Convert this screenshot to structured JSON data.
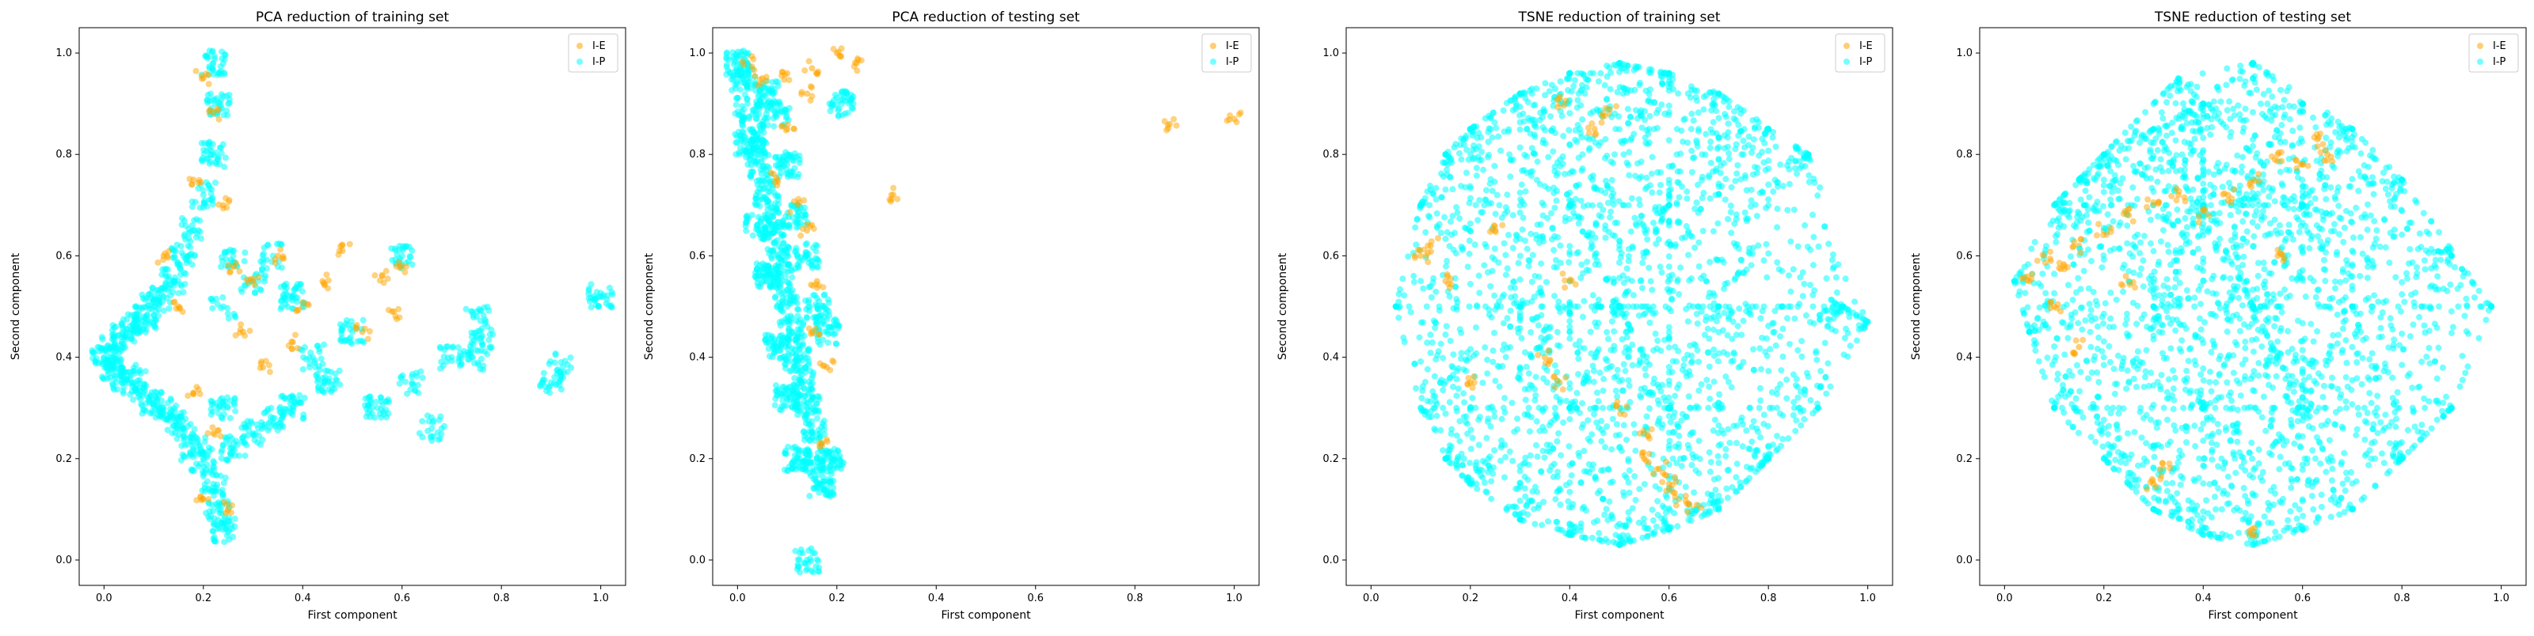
{
  "figure": {
    "colors": {
      "I-E": "#ffa500",
      "I-P": "#00ffff"
    }
  },
  "chart_data": [
    {
      "type": "scatter",
      "title": "PCA reduction of training set",
      "xlabel": "First component",
      "ylabel": "Second component",
      "xlim": [
        -0.05,
        1.05
      ],
      "ylim": [
        -0.05,
        1.05
      ],
      "xticks": [
        "0.0",
        "0.2",
        "0.4",
        "0.6",
        "0.8",
        "1.0"
      ],
      "yticks": [
        "0.0",
        "0.2",
        "0.4",
        "0.6",
        "0.8",
        "1.0"
      ],
      "legend": {
        "position": "top-right",
        "entries": [
          "I-E",
          "I-P"
        ]
      },
      "grid": false,
      "series": [
        {
          "name": "I-P",
          "color": "#00ffff",
          "points": [
            [
              0.0,
              0.4
            ],
            [
              0.02,
              0.38
            ],
            [
              0.02,
              0.42
            ],
            [
              0.04,
              0.36
            ],
            [
              0.04,
              0.44
            ],
            [
              0.06,
              0.35
            ],
            [
              0.06,
              0.46
            ],
            [
              0.08,
              0.33
            ],
            [
              0.08,
              0.48
            ],
            [
              0.1,
              0.31
            ],
            [
              0.1,
              0.5
            ],
            [
              0.12,
              0.3
            ],
            [
              0.12,
              0.52
            ],
            [
              0.14,
              0.28
            ],
            [
              0.14,
              0.55
            ],
            [
              0.16,
              0.26
            ],
            [
              0.16,
              0.6
            ],
            [
              0.18,
              0.22
            ],
            [
              0.18,
              0.65
            ],
            [
              0.2,
              0.2
            ],
            [
              0.2,
              0.72
            ],
            [
              0.22,
              0.15
            ],
            [
              0.22,
              0.8
            ],
            [
              0.23,
              0.1
            ],
            [
              0.23,
              0.9
            ],
            [
              0.24,
              0.06
            ],
            [
              0.22,
              0.98
            ],
            [
              0.24,
              0.3
            ],
            [
              0.24,
              0.5
            ],
            [
              0.26,
              0.22
            ],
            [
              0.26,
              0.6
            ],
            [
              0.3,
              0.25
            ],
            [
              0.3,
              0.55
            ],
            [
              0.34,
              0.28
            ],
            [
              0.34,
              0.6
            ],
            [
              0.38,
              0.3
            ],
            [
              0.38,
              0.52
            ],
            [
              0.42,
              0.4
            ],
            [
              0.45,
              0.35
            ],
            [
              0.5,
              0.45
            ],
            [
              0.55,
              0.3
            ],
            [
              0.6,
              0.6
            ],
            [
              0.62,
              0.35
            ],
            [
              0.66,
              0.26
            ],
            [
              0.7,
              0.4
            ],
            [
              0.75,
              0.48
            ],
            [
              0.76,
              0.43
            ],
            [
              0.74,
              0.4
            ],
            [
              0.9,
              0.35
            ],
            [
              0.92,
              0.39
            ],
            [
              1.0,
              0.52
            ]
          ]
        },
        {
          "name": "I-E",
          "color": "#ffa500",
          "points": [
            [
              0.2,
              0.95
            ],
            [
              0.22,
              0.88
            ],
            [
              0.18,
              0.75
            ],
            [
              0.24,
              0.7
            ],
            [
              0.26,
              0.58
            ],
            [
              0.3,
              0.55
            ],
            [
              0.35,
              0.6
            ],
            [
              0.4,
              0.5
            ],
            [
              0.48,
              0.61
            ],
            [
              0.52,
              0.45
            ],
            [
              0.56,
              0.56
            ],
            [
              0.15,
              0.5
            ],
            [
              0.18,
              0.33
            ],
            [
              0.22,
              0.25
            ],
            [
              0.25,
              0.1
            ],
            [
              0.2,
              0.12
            ],
            [
              0.12,
              0.6
            ],
            [
              0.28,
              0.45
            ],
            [
              0.32,
              0.38
            ],
            [
              0.38,
              0.43
            ],
            [
              0.44,
              0.55
            ],
            [
              0.58,
              0.49
            ],
            [
              0.6,
              0.58
            ]
          ]
        }
      ]
    },
    {
      "type": "scatter",
      "title": "PCA reduction of testing set",
      "xlabel": "First component",
      "ylabel": "Second component",
      "xlim": [
        -0.05,
        1.05
      ],
      "ylim": [
        -0.05,
        1.05
      ],
      "xticks": [
        "0.0",
        "0.2",
        "0.4",
        "0.6",
        "0.8",
        "1.0"
      ],
      "yticks": [
        "0.0",
        "0.2",
        "0.4",
        "0.6",
        "0.8",
        "1.0"
      ],
      "legend": {
        "position": "top-right",
        "entries": [
          "I-E",
          "I-P"
        ]
      },
      "grid": false,
      "series": [
        {
          "name": "I-P",
          "color": "#00ffff",
          "points": [
            [
              0.0,
              0.98
            ],
            [
              0.01,
              0.95
            ],
            [
              0.02,
              0.9
            ],
            [
              0.03,
              0.85
            ],
            [
              0.04,
              0.8
            ],
            [
              0.05,
              0.75
            ],
            [
              0.06,
              0.7
            ],
            [
              0.07,
              0.65
            ],
            [
              0.08,
              0.6
            ],
            [
              0.09,
              0.55
            ],
            [
              0.1,
              0.5
            ],
            [
              0.11,
              0.45
            ],
            [
              0.12,
              0.4
            ],
            [
              0.13,
              0.35
            ],
            [
              0.14,
              0.3
            ],
            [
              0.15,
              0.25
            ],
            [
              0.16,
              0.2
            ],
            [
              0.17,
              0.15
            ],
            [
              0.14,
              0.0
            ],
            [
              0.12,
              0.2
            ],
            [
              0.06,
              0.92
            ],
            [
              0.08,
              0.88
            ],
            [
              0.1,
              0.78
            ],
            [
              0.12,
              0.68
            ],
            [
              0.14,
              0.6
            ],
            [
              0.16,
              0.5
            ],
            [
              0.18,
              0.45
            ],
            [
              0.02,
              0.82
            ],
            [
              0.04,
              0.66
            ],
            [
              0.06,
              0.56
            ],
            [
              0.08,
              0.42
            ],
            [
              0.1,
              0.32
            ],
            [
              0.19,
              0.2
            ],
            [
              0.21,
              0.9
            ]
          ]
        },
        {
          "name": "I-E",
          "color": "#ffa500",
          "points": [
            [
              0.02,
              0.98
            ],
            [
              0.05,
              0.95
            ],
            [
              0.1,
              0.96
            ],
            [
              0.15,
              0.97
            ],
            [
              0.2,
              1.0
            ],
            [
              0.24,
              0.98
            ],
            [
              0.14,
              0.92
            ],
            [
              0.1,
              0.85
            ],
            [
              0.08,
              0.75
            ],
            [
              0.12,
              0.7
            ],
            [
              0.14,
              0.65
            ],
            [
              0.16,
              0.55
            ],
            [
              0.15,
              0.45
            ],
            [
              0.18,
              0.38
            ],
            [
              0.17,
              0.23
            ],
            [
              0.31,
              0.72
            ],
            [
              0.87,
              0.86
            ],
            [
              1.0,
              0.87
            ]
          ]
        }
      ]
    },
    {
      "type": "scatter",
      "title": "TSNE reduction of training set",
      "xlabel": "First component",
      "ylabel": "Second component",
      "xlim": [
        -0.05,
        1.05
      ],
      "ylim": [
        -0.05,
        1.05
      ],
      "xticks": [
        "0.0",
        "0.2",
        "0.4",
        "0.6",
        "0.8",
        "1.0"
      ],
      "yticks": [
        "0.0",
        "0.2",
        "0.4",
        "0.6",
        "0.8",
        "1.0"
      ],
      "legend": {
        "position": "top-right",
        "entries": [
          "I-E",
          "I-P"
        ]
      },
      "grid": false,
      "series": [
        {
          "name": "I-P",
          "color": "#00ffff",
          "points": [
            [
              0.05,
              0.5
            ],
            [
              0.1,
              0.7
            ],
            [
              0.1,
              0.3
            ],
            [
              0.15,
              0.8
            ],
            [
              0.15,
              0.2
            ],
            [
              0.2,
              0.85
            ],
            [
              0.2,
              0.15
            ],
            [
              0.3,
              0.92
            ],
            [
              0.3,
              0.08
            ],
            [
              0.4,
              0.96
            ],
            [
              0.4,
              0.05
            ],
            [
              0.5,
              0.98
            ],
            [
              0.5,
              0.03
            ],
            [
              0.6,
              0.96
            ],
            [
              0.6,
              0.06
            ],
            [
              0.7,
              0.92
            ],
            [
              0.7,
              0.1
            ],
            [
              0.8,
              0.85
            ],
            [
              0.8,
              0.2
            ],
            [
              0.88,
              0.8
            ],
            [
              0.9,
              0.3
            ],
            [
              0.95,
              0.5
            ],
            [
              1.0,
              0.47
            ],
            [
              0.3,
              0.5
            ],
            [
              0.5,
              0.5
            ],
            [
              0.7,
              0.5
            ],
            [
              0.4,
              0.3
            ],
            [
              0.6,
              0.3
            ],
            [
              0.4,
              0.7
            ],
            [
              0.6,
              0.7
            ]
          ]
        },
        {
          "name": "I-E",
          "color": "#ffa500",
          "points": [
            [
              0.1,
              0.6
            ],
            [
              0.12,
              0.62
            ],
            [
              0.15,
              0.55
            ],
            [
              0.25,
              0.65
            ],
            [
              0.35,
              0.4
            ],
            [
              0.4,
              0.55
            ],
            [
              0.38,
              0.35
            ],
            [
              0.5,
              0.3
            ],
            [
              0.55,
              0.25
            ],
            [
              0.55,
              0.2
            ],
            [
              0.6,
              0.15
            ],
            [
              0.62,
              0.12
            ],
            [
              0.65,
              0.1
            ],
            [
              0.58,
              0.18
            ],
            [
              0.48,
              0.88
            ],
            [
              0.38,
              0.9
            ],
            [
              0.45,
              0.85
            ],
            [
              0.2,
              0.35
            ]
          ]
        }
      ]
    },
    {
      "type": "scatter",
      "title": "TSNE reduction of testing set",
      "xlabel": "First component",
      "ylabel": "Second component",
      "xlim": [
        -0.05,
        1.05
      ],
      "ylim": [
        -0.05,
        1.05
      ],
      "xticks": [
        "0.0",
        "0.2",
        "0.4",
        "0.6",
        "0.8",
        "1.0"
      ],
      "yticks": [
        "0.0",
        "0.2",
        "0.4",
        "0.6",
        "0.8",
        "1.0"
      ],
      "legend": {
        "position": "top-right",
        "entries": [
          "I-E",
          "I-P"
        ]
      },
      "grid": false,
      "series": [
        {
          "name": "I-P",
          "color": "#00ffff",
          "points": [
            [
              0.02,
              0.55
            ],
            [
              0.05,
              0.45
            ],
            [
              0.1,
              0.7
            ],
            [
              0.1,
              0.3
            ],
            [
              0.15,
              0.75
            ],
            [
              0.2,
              0.8
            ],
            [
              0.2,
              0.2
            ],
            [
              0.3,
              0.85
            ],
            [
              0.3,
              0.1
            ],
            [
              0.4,
              0.9
            ],
            [
              0.4,
              0.05
            ],
            [
              0.5,
              0.98
            ],
            [
              0.5,
              0.03
            ],
            [
              0.6,
              0.9
            ],
            [
              0.6,
              0.06
            ],
            [
              0.7,
              0.85
            ],
            [
              0.7,
              0.1
            ],
            [
              0.8,
              0.75
            ],
            [
              0.8,
              0.2
            ],
            [
              0.9,
              0.6
            ],
            [
              0.9,
              0.3
            ],
            [
              0.98,
              0.5
            ],
            [
              0.3,
              0.5
            ],
            [
              0.5,
              0.5
            ],
            [
              0.7,
              0.5
            ],
            [
              0.4,
              0.3
            ],
            [
              0.6,
              0.3
            ],
            [
              0.4,
              0.7
            ],
            [
              0.6,
              0.7
            ],
            [
              0.35,
              0.95
            ]
          ]
        },
        {
          "name": "I-E",
          "color": "#ffa500",
          "points": [
            [
              0.05,
              0.55
            ],
            [
              0.08,
              0.6
            ],
            [
              0.1,
              0.5
            ],
            [
              0.12,
              0.58
            ],
            [
              0.15,
              0.62
            ],
            [
              0.2,
              0.65
            ],
            [
              0.25,
              0.68
            ],
            [
              0.3,
              0.7
            ],
            [
              0.35,
              0.72
            ],
            [
              0.4,
              0.68
            ],
            [
              0.45,
              0.72
            ],
            [
              0.5,
              0.75
            ],
            [
              0.55,
              0.8
            ],
            [
              0.6,
              0.78
            ],
            [
              0.63,
              0.83
            ],
            [
              0.65,
              0.8
            ],
            [
              0.3,
              0.15
            ],
            [
              0.32,
              0.18
            ],
            [
              0.5,
              0.05
            ],
            [
              0.55,
              0.6
            ],
            [
              0.25,
              0.55
            ],
            [
              0.15,
              0.42
            ]
          ]
        }
      ]
    }
  ]
}
